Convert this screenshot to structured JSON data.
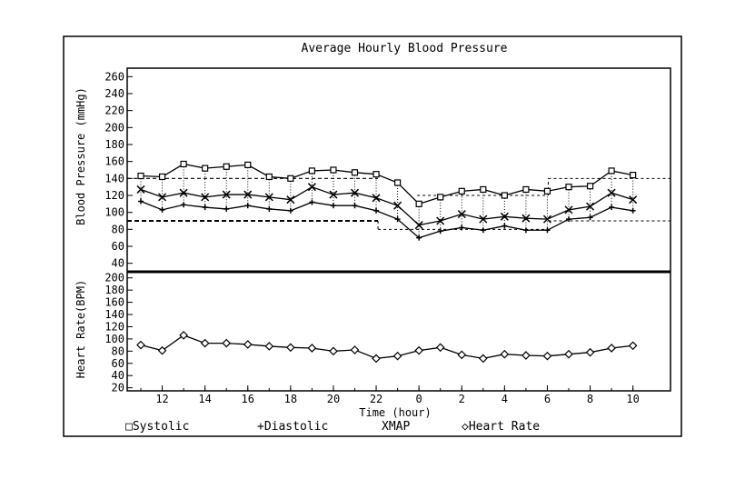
{
  "chart_data": {
    "type": "line",
    "title": "Average Hourly Blood Pressure",
    "xlabel": "Time (hour)",
    "x_ticks": [
      "12",
      "14",
      "16",
      "18",
      "20",
      "22",
      "0",
      "2",
      "4",
      "6",
      "8",
      "10"
    ],
    "x_hours": [
      11,
      12,
      13,
      14,
      15,
      16,
      17,
      18,
      19,
      20,
      21,
      22,
      23,
      0,
      1,
      2,
      3,
      4,
      5,
      6,
      7,
      8,
      9,
      10
    ],
    "panels": [
      {
        "ylabel": "Blood Pressure (mmHg)",
        "ylim": [
          30,
          270
        ],
        "y_ticks": [
          40,
          60,
          80,
          100,
          120,
          140,
          160,
          180,
          200,
          220,
          240,
          260
        ],
        "series": [
          {
            "name": "Systolic",
            "marker": "square",
            "values": [
              143,
              142,
              157,
              152,
              154,
              156,
              142,
              140,
              149,
              150,
              147,
              145,
              135,
              110,
              118,
              125,
              127,
              120,
              127,
              125,
              130,
              131,
              149,
              144
            ]
          },
          {
            "name": "MAP",
            "marker": "x",
            "values": [
              127,
              118,
              123,
              118,
              121,
              121,
              118,
              115,
              130,
              121,
              123,
              117,
              108,
              85,
              90,
              98,
              92,
              95,
              93,
              92,
              103,
              107,
              123,
              115
            ]
          },
          {
            "name": "Diastolic",
            "marker": "plus",
            "values": [
              113,
              103,
              109,
              106,
              104,
              108,
              104,
              102,
              112,
              108,
              108,
              102,
              92,
              70,
              78,
              82,
              79,
              84,
              79,
              79,
              92,
              94,
              106,
              102
            ]
          }
        ],
        "threshold_steps": [
          {
            "hour_start": 11,
            "hour_end": 22,
            "upper": 140,
            "lower": 90
          },
          {
            "hour_start": 22,
            "hour_end": 10,
            "upper": 120,
            "lower": 80
          },
          {
            "hour_start": 6,
            "hour_end": 10,
            "upper": 140,
            "lower": 90
          }
        ]
      },
      {
        "ylabel": "Heart Rate(BPM)",
        "ylim": [
          15,
          210
        ],
        "y_ticks": [
          20,
          40,
          60,
          80,
          100,
          120,
          140,
          160,
          180,
          200
        ],
        "series": [
          {
            "name": "Heart Rate",
            "marker": "diamond",
            "values": [
              90,
              81,
              106,
              93,
              93,
              91,
              88,
              86,
              85,
              80,
              82,
              68,
              72,
              81,
              86,
              74,
              68,
              75,
              73,
              72,
              75,
              78,
              85,
              89
            ]
          }
        ]
      }
    ],
    "legend": [
      {
        "name": "Systolic",
        "symbol": "□"
      },
      {
        "name": "Diastolic",
        "symbol": "+"
      },
      {
        "name": "MAP",
        "symbol": "X"
      },
      {
        "name": "Heart Rate",
        "symbol": "◇"
      }
    ],
    "legend_position": "bottom",
    "grid": false
  }
}
